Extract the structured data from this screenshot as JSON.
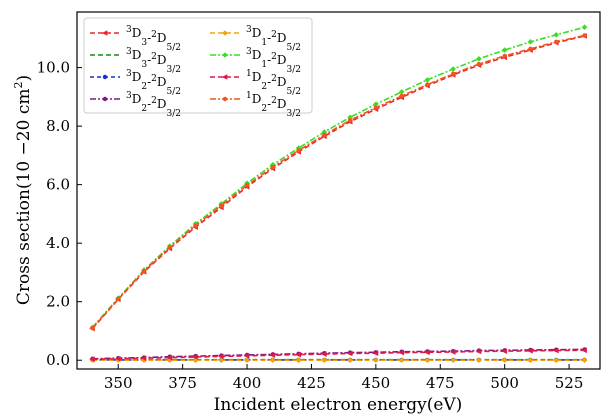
{
  "chart_data": {
    "type": "line",
    "xlabel": "Incident electron energy(eV)",
    "ylabel": "Cross section(10 −20 cm2)",
    "ylabel_parts": {
      "main": "Cross section(10 −20 cm",
      "sup": "2",
      "end": ")"
    },
    "xlim": [
      334,
      537
    ],
    "ylim": [
      -0.3,
      11.9
    ],
    "xticks": [
      350,
      375,
      400,
      425,
      450,
      475,
      500,
      525
    ],
    "yticks": [
      0.0,
      2.0,
      4.0,
      6.0,
      8.0,
      10.0
    ],
    "ytick_labels": [
      "0.0",
      "2.0",
      "4.0",
      "6.0",
      "8.0",
      "10.0"
    ],
    "grid": false,
    "legend_position": "top-left",
    "x": [
      340,
      350,
      360,
      370,
      380,
      390,
      400,
      410,
      420,
      430,
      440,
      450,
      460,
      470,
      480,
      490,
      500,
      510,
      520,
      531
    ],
    "series": [
      {
        "name": "3D3-2D5/2",
        "label_parts": [
          "3",
          "D",
          "3",
          "-",
          "2",
          "D",
          "5/2"
        ],
        "color": "#e8282b",
        "dash": "5,3",
        "marker": "tri-left",
        "values": [
          1.08,
          2.08,
          3.02,
          3.82,
          4.55,
          5.22,
          5.93,
          6.55,
          7.12,
          7.65,
          8.15,
          8.58,
          8.98,
          9.38,
          9.75,
          10.08,
          10.35,
          10.6,
          10.85,
          11.08
        ]
      },
      {
        "name": "3D3-2D3/2",
        "label_parts": [
          "3",
          "D",
          "3",
          "-",
          "2",
          "D",
          "3/2"
        ],
        "color": "#138a1d",
        "dash": "5,3",
        "marker": "none",
        "values": [
          0.02,
          0.02,
          0.02,
          0.02,
          0.02,
          0.02,
          0.02,
          0.02,
          0.02,
          0.02,
          0.02,
          0.02,
          0.02,
          0.02,
          0.02,
          0.02,
          0.02,
          0.02,
          0.02,
          0.02
        ]
      },
      {
        "name": "3D2-2D5/2",
        "label_parts": [
          "3",
          "D",
          "2",
          "-",
          "2",
          "D",
          "5/2"
        ],
        "color": "#1a2fd0",
        "dash": "4,3",
        "marker": "dot",
        "values": [
          0.01,
          0.01,
          0.01,
          0.01,
          0.01,
          0.01,
          0.01,
          0.01,
          0.01,
          0.01,
          0.01,
          0.01,
          0.01,
          0.01,
          0.01,
          0.01,
          0.01,
          0.01,
          0.01,
          0.01
        ]
      },
      {
        "name": "3D2-2D3/2",
        "label_parts": [
          "3",
          "D",
          "2",
          "-",
          "2",
          "D",
          "3/2"
        ],
        "color": "#7c1a86",
        "dash": "6,2,2,2",
        "marker": "dot",
        "values": [
          0.05,
          0.07,
          0.09,
          0.12,
          0.14,
          0.16,
          0.18,
          0.2,
          0.22,
          0.24,
          0.26,
          0.27,
          0.29,
          0.3,
          0.31,
          0.33,
          0.34,
          0.35,
          0.36,
          0.37
        ]
      },
      {
        "name": "3D1-2D5/2",
        "label_parts": [
          "3",
          "D",
          "1",
          "-",
          "2",
          "D",
          "5/2"
        ],
        "color": "#f5a30c",
        "dash": "5,3",
        "marker": "diamond",
        "values": [
          0.0,
          0.0,
          0.0,
          0.0,
          0.0,
          0.0,
          0.0,
          0.0,
          0.0,
          0.0,
          0.0,
          0.0,
          0.0,
          0.0,
          0.0,
          0.0,
          0.0,
          0.0,
          0.0,
          0.0
        ]
      },
      {
        "name": "3D1-2D3/2",
        "label_parts": [
          "3",
          "D",
          "1",
          "-",
          "2",
          "D",
          "3/2"
        ],
        "color": "#3ddc2a",
        "dash": "6,2,2,2",
        "marker": "diamond",
        "values": [
          1.12,
          2.12,
          3.08,
          3.9,
          4.66,
          5.34,
          6.05,
          6.68,
          7.25,
          7.8,
          8.3,
          8.75,
          9.17,
          9.58,
          9.95,
          10.3,
          10.6,
          10.88,
          11.12,
          11.38
        ]
      },
      {
        "name": "1D2-2D5/2",
        "label_parts": [
          "1",
          "D",
          "2",
          "-",
          "2",
          "D",
          "5/2"
        ],
        "color": "#db1a4a",
        "dash": "5,3",
        "marker": "tri-left",
        "values": [
          0.03,
          0.05,
          0.07,
          0.09,
          0.11,
          0.13,
          0.15,
          0.17,
          0.19,
          0.21,
          0.23,
          0.24,
          0.26,
          0.27,
          0.28,
          0.3,
          0.31,
          0.32,
          0.33,
          0.34
        ]
      },
      {
        "name": "1D2-2D3/2",
        "label_parts": [
          "1",
          "D",
          "2",
          "-",
          "2",
          "D",
          "3/2"
        ],
        "color": "#f0561e",
        "dash": "6,2,2,2",
        "marker": "dot",
        "values": [
          1.1,
          2.1,
          3.05,
          3.86,
          4.6,
          5.28,
          5.98,
          6.6,
          7.17,
          7.7,
          8.2,
          8.63,
          9.03,
          9.42,
          9.79,
          10.12,
          10.4,
          10.64,
          10.88,
          11.1
        ]
      }
    ]
  }
}
